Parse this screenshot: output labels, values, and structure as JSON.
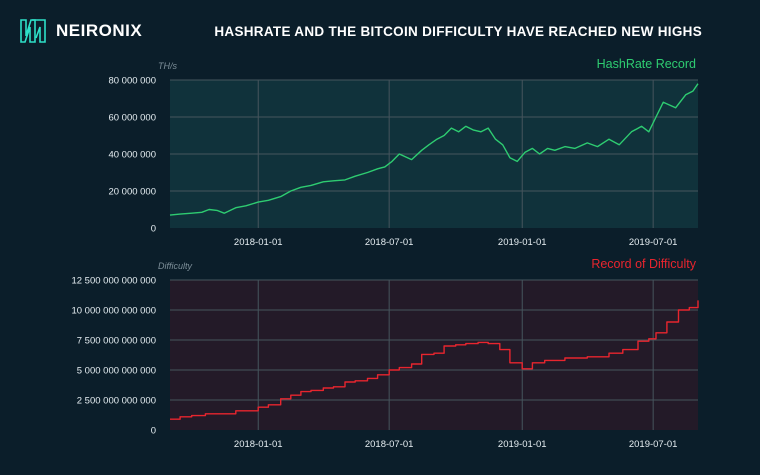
{
  "brand": {
    "name": "NEIRONIX",
    "logo_icon": "neironix-logo-icon",
    "color": "#2ee0c8"
  },
  "headline": "HASHRATE AND THE BITCOIN DIFFICULTY HAVE REACHED NEW HIGHS",
  "colors": {
    "background": "#0b1e2a",
    "hashrate_line": "#2ecc71",
    "hashrate_title": "#2ecc71",
    "hashrate_panel": "#10323b",
    "difficulty_line": "#e8252e",
    "difficulty_title": "#e8252e",
    "difficulty_panel": "#231a28",
    "grid": "#46555d"
  },
  "chart_data": [
    {
      "type": "line",
      "title": "HashRate Record",
      "ylabel": "TH/s",
      "xlim": [
        "2017-09-01",
        "2019-09-01"
      ],
      "ylim": [
        0,
        80000000
      ],
      "yticks": [
        0,
        20000000,
        40000000,
        60000000,
        80000000
      ],
      "ytick_labels": [
        "0",
        "20 000 000",
        "40 000 000",
        "60 000 000",
        "80 000 000"
      ],
      "xticks": [
        "2018-01-01",
        "2018-07-01",
        "2019-01-01",
        "2019-07-01"
      ],
      "grid": true,
      "legend": "none",
      "series": [
        {
          "x": [
            "2017-09-01",
            "2017-09-15",
            "2017-10-01",
            "2017-10-15",
            "2017-10-25",
            "2017-11-05",
            "2017-11-15",
            "2017-12-01",
            "2017-12-15",
            "2018-01-01",
            "2018-01-15",
            "2018-02-01",
            "2018-02-15",
            "2018-03-01",
            "2018-03-15",
            "2018-04-01",
            "2018-04-15",
            "2018-05-01",
            "2018-05-15",
            "2018-06-01",
            "2018-06-15",
            "2018-06-25",
            "2018-07-05",
            "2018-07-15",
            "2018-08-01",
            "2018-08-15",
            "2018-08-25",
            "2018-09-05",
            "2018-09-15",
            "2018-09-25",
            "2018-10-05",
            "2018-10-15",
            "2018-10-25",
            "2018-11-05",
            "2018-11-15",
            "2018-11-25",
            "2018-12-05",
            "2018-12-15",
            "2018-12-25",
            "2019-01-05",
            "2019-01-15",
            "2019-01-25",
            "2019-02-05",
            "2019-02-15",
            "2019-03-01",
            "2019-03-15",
            "2019-04-01",
            "2019-04-15",
            "2019-05-01",
            "2019-05-15",
            "2019-06-01",
            "2019-06-15",
            "2019-06-25",
            "2019-07-05",
            "2019-07-15",
            "2019-08-01",
            "2019-08-15",
            "2019-08-25",
            "2019-09-01"
          ],
          "y": [
            7000000,
            7500000,
            8000000,
            8500000,
            10000000,
            9500000,
            8000000,
            11000000,
            12000000,
            14000000,
            15000000,
            17000000,
            20000000,
            22000000,
            23000000,
            25000000,
            25500000,
            26000000,
            28000000,
            30000000,
            32000000,
            33000000,
            36000000,
            40000000,
            37000000,
            42000000,
            45000000,
            48000000,
            50000000,
            54000000,
            52000000,
            55000000,
            53000000,
            52000000,
            54000000,
            48000000,
            45000000,
            38000000,
            36000000,
            41000000,
            43000000,
            40000000,
            43000000,
            42000000,
            44000000,
            43000000,
            46000000,
            44000000,
            48000000,
            45000000,
            52000000,
            55000000,
            52000000,
            60000000,
            68000000,
            65000000,
            72000000,
            74000000,
            78000000
          ]
        }
      ]
    },
    {
      "type": "line",
      "title": "Record of Difficulty",
      "ylabel": "Difficulty",
      "xlim": [
        "2017-09-01",
        "2019-09-01"
      ],
      "ylim": [
        0,
        12500000000000
      ],
      "yticks": [
        0,
        2500000000000,
        5000000000000,
        7500000000000,
        10000000000000,
        12500000000000
      ],
      "ytick_labels": [
        "0",
        "2 500 000 000 000",
        "5 000 000 000 000",
        "7 500 000 000 000",
        "10 000 000 000 000",
        "12 500 000 000 000"
      ],
      "xticks": [
        "2018-01-01",
        "2018-07-01",
        "2019-01-01",
        "2019-07-01"
      ],
      "grid": true,
      "legend": "none",
      "series": [
        {
          "x": [
            "2017-09-01",
            "2017-09-15",
            "2017-10-01",
            "2017-10-20",
            "2017-11-15",
            "2017-12-01",
            "2018-01-01",
            "2018-01-15",
            "2018-02-01",
            "2018-02-15",
            "2018-03-01",
            "2018-03-15",
            "2018-04-01",
            "2018-04-15",
            "2018-05-01",
            "2018-05-15",
            "2018-06-01",
            "2018-06-15",
            "2018-07-01",
            "2018-07-15",
            "2018-08-01",
            "2018-08-15",
            "2018-09-01",
            "2018-09-15",
            "2018-10-01",
            "2018-10-15",
            "2018-11-01",
            "2018-11-15",
            "2018-12-01",
            "2018-12-15",
            "2019-01-01",
            "2019-01-15",
            "2019-02-01",
            "2019-02-15",
            "2019-03-01",
            "2019-04-01",
            "2019-05-01",
            "2019-05-20",
            "2019-06-10",
            "2019-06-25",
            "2019-07-05",
            "2019-07-20",
            "2019-08-05",
            "2019-08-20",
            "2019-09-01"
          ],
          "y": [
            900000000000,
            1100000000000,
            1200000000000,
            1350000000000,
            1350000000000,
            1600000000000,
            1900000000000,
            2100000000000,
            2600000000000,
            2900000000000,
            3200000000000,
            3300000000000,
            3500000000000,
            3600000000000,
            4000000000000,
            4100000000000,
            4300000000000,
            4600000000000,
            5000000000000,
            5200000000000,
            5500000000000,
            6300000000000,
            6400000000000,
            7000000000000,
            7100000000000,
            7200000000000,
            7300000000000,
            7200000000000,
            6700000000000,
            5600000000000,
            5100000000000,
            5600000000000,
            5800000000000,
            5800000000000,
            6000000000000,
            6100000000000,
            6400000000000,
            6700000000000,
            7400000000000,
            7600000000000,
            8100000000000,
            9000000000000,
            10000000000000,
            10200000000000,
            10800000000000
          ]
        }
      ]
    }
  ]
}
